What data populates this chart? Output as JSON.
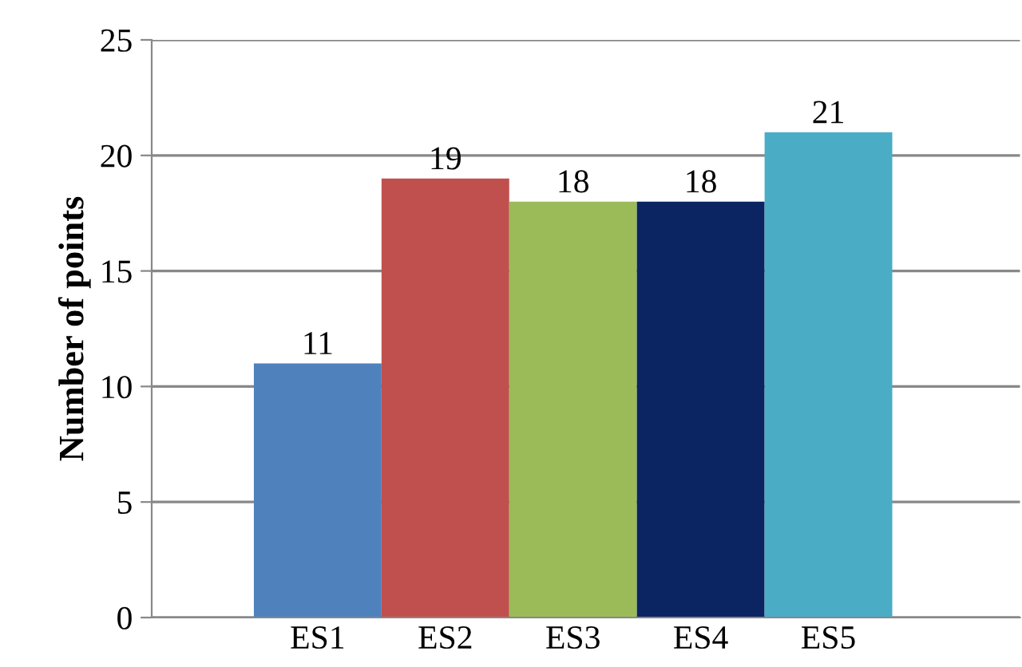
{
  "chart_data": {
    "type": "bar",
    "ylabel": "Number of points",
    "categories": [
      "ES1",
      "ES2",
      "ES3",
      "ES4",
      "ES5"
    ],
    "values": [
      11,
      19,
      18,
      18,
      21
    ],
    "colors": [
      "#4f81bd",
      "#c0504d",
      "#9bbb59",
      "#0b2462",
      "#4bacc6"
    ],
    "ylim": [
      0,
      25
    ],
    "yticks": [
      0,
      5,
      10,
      15,
      20,
      25
    ],
    "grid": "y",
    "data_labels": true,
    "legend": false
  }
}
